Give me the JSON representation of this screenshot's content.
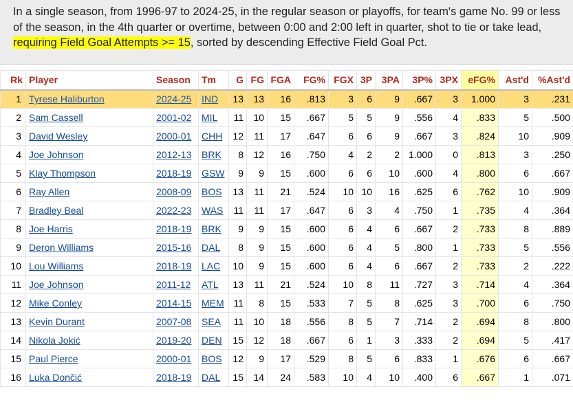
{
  "summary": {
    "before": "In a single season, from 1996-97 to 2024-25, in the regular season or playoffs, for team's game No. 99 or less of the season, in the 4th quarter or overtime, between 0:00 and 2:00 left in quarter, shot to tie or take lead, ",
    "highlight": "requiring Field Goal Attempts >= 15",
    "after": ", sorted by descending Effective Field Goal Pct."
  },
  "columns": [
    "Rk",
    "Player",
    "Season",
    "Tm",
    "G",
    "FG",
    "FGA",
    "FG%",
    "FGX",
    "3P",
    "3PA",
    "3P%",
    "3PX",
    "eFG%",
    "Ast'd",
    "%Ast'd"
  ],
  "sorted_column": "eFG%",
  "rows": [
    [
      "1",
      "Tyrese Haliburton",
      "2024-25",
      "IND",
      "13",
      "13",
      "16",
      ".813",
      "3",
      "6",
      "9",
      ".667",
      "3",
      "1.000",
      "3",
      ".231"
    ],
    [
      "2",
      "Sam Cassell",
      "2001-02",
      "MIL",
      "11",
      "10",
      "15",
      ".667",
      "5",
      "5",
      "9",
      ".556",
      "4",
      ".833",
      "5",
      ".500"
    ],
    [
      "3",
      "David Wesley",
      "2000-01",
      "CHH",
      "12",
      "11",
      "17",
      ".647",
      "6",
      "6",
      "9",
      ".667",
      "3",
      ".824",
      "10",
      ".909"
    ],
    [
      "4",
      "Joe Johnson",
      "2012-13",
      "BRK",
      "8",
      "12",
      "16",
      ".750",
      "4",
      "2",
      "2",
      "1.000",
      "0",
      ".813",
      "3",
      ".250"
    ],
    [
      "5",
      "Klay Thompson",
      "2018-19",
      "GSW",
      "9",
      "9",
      "15",
      ".600",
      "6",
      "6",
      "10",
      ".600",
      "4",
      ".800",
      "6",
      ".667"
    ],
    [
      "6",
      "Ray Allen",
      "2008-09",
      "BOS",
      "13",
      "11",
      "21",
      ".524",
      "10",
      "10",
      "16",
      ".625",
      "6",
      ".762",
      "10",
      ".909"
    ],
    [
      "7",
      "Bradley Beal",
      "2022-23",
      "WAS",
      "11",
      "11",
      "17",
      ".647",
      "6",
      "3",
      "4",
      ".750",
      "1",
      ".735",
      "4",
      ".364"
    ],
    [
      "8",
      "Joe Harris",
      "2018-19",
      "BRK",
      "9",
      "9",
      "15",
      ".600",
      "6",
      "4",
      "6",
      ".667",
      "2",
      ".733",
      "8",
      ".889"
    ],
    [
      "9",
      "Deron Williams",
      "2015-16",
      "DAL",
      "8",
      "9",
      "15",
      ".600",
      "6",
      "4",
      "5",
      ".800",
      "1",
      ".733",
      "5",
      ".556"
    ],
    [
      "10",
      "Lou Williams",
      "2018-19",
      "LAC",
      "10",
      "9",
      "15",
      ".600",
      "6",
      "4",
      "6",
      ".667",
      "2",
      ".733",
      "2",
      ".222"
    ],
    [
      "11",
      "Joe Johnson",
      "2011-12",
      "ATL",
      "13",
      "11",
      "21",
      ".524",
      "10",
      "8",
      "11",
      ".727",
      "3",
      ".714",
      "4",
      ".364"
    ],
    [
      "12",
      "Mike Conley",
      "2014-15",
      "MEM",
      "11",
      "8",
      "15",
      ".533",
      "7",
      "5",
      "8",
      ".625",
      "3",
      ".700",
      "6",
      ".750"
    ],
    [
      "13",
      "Kevin Durant",
      "2007-08",
      "SEA",
      "11",
      "10",
      "18",
      ".556",
      "8",
      "5",
      "7",
      ".714",
      "2",
      ".694",
      "8",
      ".800"
    ],
    [
      "14",
      "Nikola Jokić",
      "2019-20",
      "DEN",
      "15",
      "12",
      "18",
      ".667",
      "6",
      "1",
      "3",
      ".333",
      "2",
      ".694",
      "5",
      ".417"
    ],
    [
      "15",
      "Paul Pierce",
      "2000-01",
      "BOS",
      "12",
      "9",
      "17",
      ".529",
      "8",
      "5",
      "6",
      ".833",
      "1",
      ".676",
      "6",
      ".667"
    ],
    [
      "16",
      "Luka Dončić",
      "2018-19",
      "DAL",
      "15",
      "14",
      "24",
      ".583",
      "10",
      "4",
      "10",
      ".400",
      "6",
      ".667",
      "1",
      ".071"
    ]
  ],
  "colors": {
    "header_text": "#b0281c",
    "link": "#134a9a",
    "highlight_row": "#ffdc7a",
    "sorted_column": "#ffffcc",
    "summary_highlight": "#ffff00"
  }
}
